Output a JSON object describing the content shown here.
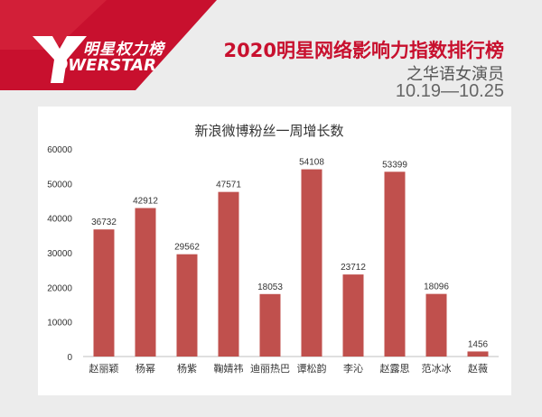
{
  "header": {
    "logo_cn": "明星权力榜",
    "logo_en": "OWERSTAR",
    "title": "2020明星网络影响力指数排行榜",
    "subtitle": "之华语女演员",
    "date_range": "10.19—10.25"
  },
  "colors": {
    "brand": "#c8102e",
    "bar": "#c0504d",
    "axis": "#bfbfbf"
  },
  "chart_data": {
    "type": "bar",
    "title": "新浪微博粉丝一周增长数",
    "categories": [
      "赵丽颖",
      "杨幂",
      "杨紫",
      "鞠婧祎",
      "迪丽热巴",
      "谭松韵",
      "李沁",
      "赵露思",
      "范冰冰",
      "赵薇"
    ],
    "values": [
      36732,
      42912,
      29562,
      47571,
      18053,
      54108,
      23712,
      53399,
      18096,
      1456
    ],
    "ylim": [
      0,
      60000
    ],
    "yticks": [
      0,
      10000,
      20000,
      30000,
      40000,
      50000,
      60000
    ],
    "grid": false,
    "data_labels": true
  }
}
